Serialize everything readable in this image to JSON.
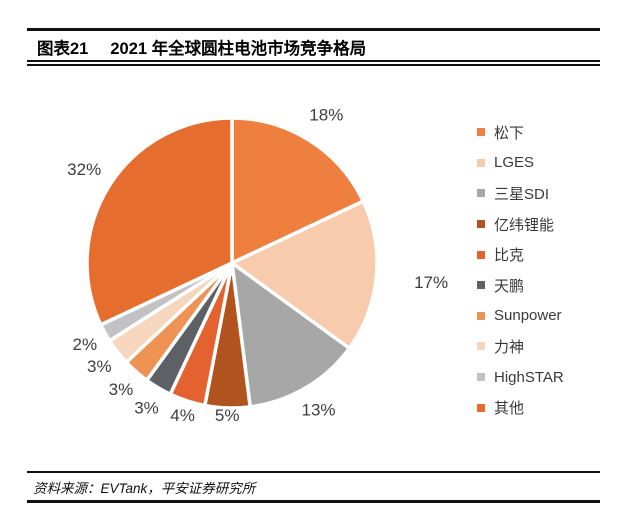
{
  "header": {
    "figure_label": "图表21",
    "title": "2021 年全球圆柱电池市场竞争格局"
  },
  "footer": {
    "source": "资料来源：EVTank，平安证券研究所"
  },
  "chart_data": {
    "type": "pie",
    "title": "2021 年全球圆柱电池市场竞争格局",
    "start_angle_deg": 0,
    "direction": "clockwise",
    "legend_position": "right",
    "slice_border_color": "#ffffff",
    "percent_label_color": "#3d3d3d",
    "label_radius": [
      176,
      200,
      170,
      152,
      160,
      168,
      168,
      168,
      168,
      175
    ],
    "slices": [
      {
        "label": "松下",
        "value": 18,
        "pct_label": "18%",
        "color": "#EE7F3E"
      },
      {
        "label": "LGES",
        "value": 17,
        "pct_label": "17%",
        "color": "#F8CBAD"
      },
      {
        "label": "三星SDI",
        "value": 13,
        "pct_label": "13%",
        "color": "#A7A7A7"
      },
      {
        "label": "亿纬锂能",
        "value": 5,
        "pct_label": "5%",
        "color": "#B0531E"
      },
      {
        "label": "比克",
        "value": 4,
        "pct_label": "4%",
        "color": "#E4622F"
      },
      {
        "label": "天鹏",
        "value": 3,
        "pct_label": "3%",
        "color": "#5D6065"
      },
      {
        "label": "Sunpower",
        "value": 3,
        "pct_label": "3%",
        "color": "#EF9355"
      },
      {
        "label": "力神",
        "value": 3,
        "pct_label": "3%",
        "color": "#F7D6BE"
      },
      {
        "label": "HighSTAR",
        "value": 2,
        "pct_label": "2%",
        "color": "#C2C2C4"
      },
      {
        "label": "其他",
        "value": 32,
        "pct_label": "32%",
        "color": "#E56E2E"
      }
    ]
  }
}
